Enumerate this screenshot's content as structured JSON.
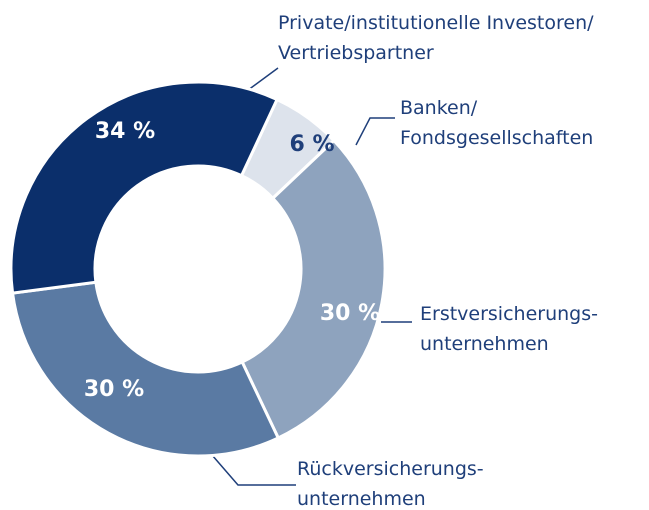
{
  "chart_data": {
    "type": "donut",
    "categories": [
      [
        "Banken/",
        "Fondsgesellschaften"
      ],
      [
        "Erstversicherungs-",
        "unternehmen"
      ],
      [
        "Rückversicherungs-",
        "unternehmen"
      ],
      [
        "Private/institutionelle Investoren/",
        "Vertriebspartner"
      ]
    ],
    "values": [
      6,
      30,
      30,
      34
    ],
    "value_labels": [
      "6 %",
      "30 %",
      "30 %",
      "34 %"
    ],
    "colors": [
      "#dde3ec",
      "#8ea3be",
      "#5a7aa3",
      "#0b2f6b"
    ]
  }
}
